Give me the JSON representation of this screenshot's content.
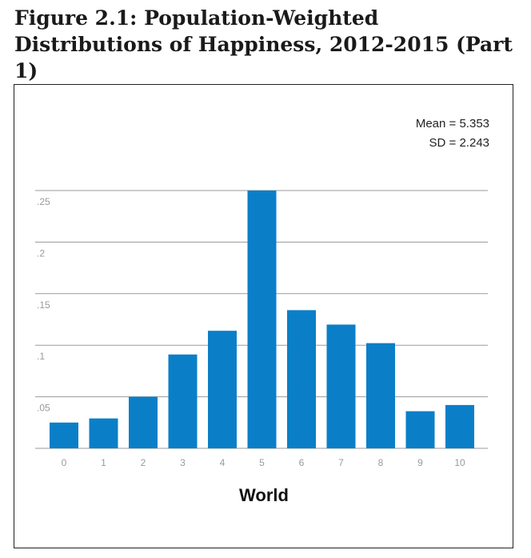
{
  "figure": {
    "title": "Figure 2.1: Population-Weighted Distributions of Happiness, 2012-2015 (Part 1)"
  },
  "colors": {
    "bar": "#0a7fc8",
    "grid": "#9a9a9a",
    "tick": "#9a9a9a"
  },
  "chart_data": {
    "type": "bar",
    "categories": [
      "0",
      "1",
      "2",
      "3",
      "4",
      "5",
      "6",
      "7",
      "8",
      "9",
      "10"
    ],
    "values": [
      0.025,
      0.029,
      0.05,
      0.091,
      0.114,
      0.25,
      0.134,
      0.12,
      0.102,
      0.036,
      0.042
    ],
    "xlabel": "World",
    "ylabel": "",
    "ylim": [
      0,
      0.25
    ],
    "yticks": [
      ".05",
      ".1",
      ".15",
      ".2",
      ".25"
    ],
    "ytick_values": [
      0.05,
      0.1,
      0.15,
      0.2,
      0.25
    ],
    "grid": true,
    "annotations": {
      "mean": "Mean = 5.353",
      "sd": "SD = 2.243"
    }
  }
}
